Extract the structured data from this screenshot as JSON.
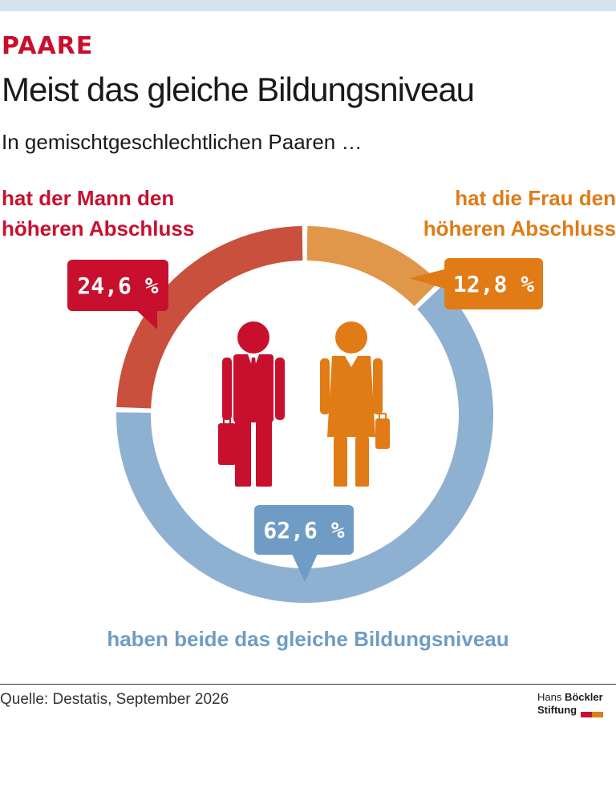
{
  "header": {
    "kicker": "PAARE",
    "title": "Meist das gleiche Bildungsniveau",
    "subtitle": "In gemischtgeschlechtlichen Paaren …"
  },
  "labels": {
    "man_line1": "hat der Mann den",
    "man_line2": "höheren Abschluss",
    "woman_line1": "hat die Frau den",
    "woman_line2": "höheren Abschluss",
    "both": "haben beide das gleiche Bildungsniveau"
  },
  "chart_data": {
    "type": "pie",
    "variant": "donut",
    "slices": [
      {
        "label": "hat die Frau den höheren Abschluss",
        "value": 12.8,
        "display": "12,8 %",
        "color": "#e0974a",
        "badge_color": "#e07b16"
      },
      {
        "label": "haben beide das gleiche Bildungsniveau",
        "value": 62.6,
        "display": "62,6 %",
        "color": "#8fb1d1",
        "badge_color": "#6f9cc4"
      },
      {
        "label": "hat der Mann den höheren Abschluss",
        "value": 24.6,
        "display": "24,6 %",
        "color": "#c8503c",
        "badge_color": "#c8102e"
      }
    ]
  },
  "icons": {
    "man": "businessman-icon",
    "woman": "businesswoman-icon"
  },
  "footer": {
    "source": "Quelle: Destatis, September 2026",
    "brand_line1_a": "Hans ",
    "brand_line1_b": "Böckler",
    "brand_line2": "Stiftung",
    "brand_colors": [
      "#c8102e",
      "#e07b16"
    ]
  }
}
